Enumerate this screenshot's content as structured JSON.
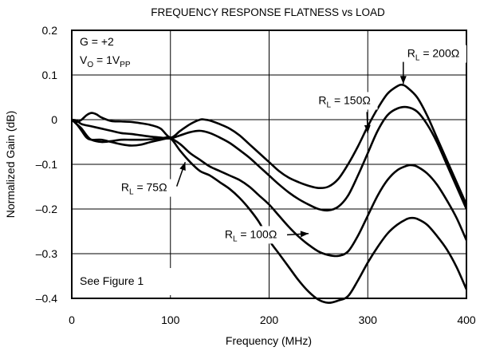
{
  "chart_data": {
    "type": "line",
    "title": "FREQUENCY RESPONSE FLATNESS vs LOAD",
    "xlabel": "Frequency (MHz)",
    "ylabel": "Normalized Gain (dB)",
    "xlim": [
      0,
      400
    ],
    "ylim": [
      -0.4,
      0.2
    ],
    "x_ticks": [
      0,
      100,
      200,
      300,
      400
    ],
    "x_tick_labels": [
      "0",
      "100",
      "200",
      "300",
      "400"
    ],
    "y_ticks": [
      0.2,
      0.1,
      0,
      -0.1,
      -0.2,
      -0.3,
      -0.4
    ],
    "y_tick_labels": [
      "0.2",
      "0.1",
      "0",
      "–0.1",
      "–0.2",
      "–0.3",
      "–0.4"
    ],
    "grid": true,
    "conditions": {
      "gain": {
        "main": "G = +2",
        "sub": ""
      },
      "vout": {
        "main": "V",
        "sub": "O",
        "rest": " = 1V",
        "sub2": "PP"
      },
      "note": "See Figure 1"
    },
    "series": [
      {
        "name": "RL = 200Ω",
        "label": {
          "r": "R",
          "sub": "L",
          "rest": " = 200Ω"
        },
        "x": [
          0,
          5,
          10,
          15,
          20,
          25,
          30,
          40,
          50,
          60,
          70,
          80,
          90,
          100,
          110,
          120,
          130,
          135,
          140,
          150,
          160,
          170,
          180,
          190,
          200,
          210,
          220,
          230,
          240,
          250,
          260,
          270,
          280,
          290,
          300,
          310,
          320,
          330,
          335,
          340,
          350,
          360,
          370,
          380,
          390,
          400
        ],
        "values": [
          0,
          -0.005,
          0.0,
          0.01,
          0.015,
          0.012,
          0.005,
          -0.003,
          -0.004,
          -0.005,
          -0.008,
          -0.012,
          -0.02,
          -0.04,
          -0.025,
          -0.01,
          0.0,
          0.0,
          -0.002,
          -0.01,
          -0.02,
          -0.035,
          -0.055,
          -0.075,
          -0.095,
          -0.115,
          -0.13,
          -0.14,
          -0.148,
          -0.153,
          -0.15,
          -0.133,
          -0.1,
          -0.06,
          -0.015,
          0.025,
          0.058,
          0.075,
          0.078,
          0.072,
          0.05,
          0.01,
          -0.04,
          -0.09,
          -0.14,
          -0.19
        ]
      },
      {
        "name": "RL = 150Ω",
        "label": {
          "r": "R",
          "sub": "L",
          "rest": " = 150Ω"
        },
        "x": [
          0,
          5,
          10,
          20,
          30,
          40,
          50,
          60,
          70,
          80,
          90,
          100,
          110,
          120,
          130,
          140,
          150,
          160,
          170,
          180,
          190,
          200,
          210,
          220,
          230,
          240,
          250,
          260,
          270,
          280,
          290,
          300,
          310,
          320,
          330,
          340,
          350,
          360,
          370,
          380,
          390,
          400
        ],
        "values": [
          0,
          -0.002,
          -0.01,
          -0.015,
          -0.02,
          -0.025,
          -0.03,
          -0.032,
          -0.035,
          -0.038,
          -0.04,
          -0.042,
          -0.035,
          -0.028,
          -0.025,
          -0.03,
          -0.04,
          -0.052,
          -0.068,
          -0.085,
          -0.105,
          -0.125,
          -0.145,
          -0.163,
          -0.178,
          -0.19,
          -0.2,
          -0.203,
          -0.195,
          -0.17,
          -0.125,
          -0.075,
          -0.025,
          0.01,
          0.025,
          0.028,
          0.018,
          -0.01,
          -0.05,
          -0.1,
          -0.15,
          -0.2
        ]
      },
      {
        "name": "RL = 100Ω",
        "label": {
          "r": "R",
          "sub": "L",
          "rest": " = 100Ω"
        },
        "x": [
          0,
          5,
          10,
          15,
          20,
          30,
          40,
          50,
          60,
          70,
          80,
          90,
          100,
          110,
          120,
          130,
          140,
          150,
          160,
          170,
          180,
          190,
          200,
          210,
          220,
          230,
          240,
          250,
          260,
          270,
          280,
          290,
          300,
          310,
          320,
          330,
          340,
          345,
          350,
          360,
          370,
          380,
          390,
          400
        ],
        "values": [
          0,
          -0.01,
          -0.025,
          -0.04,
          -0.045,
          -0.045,
          -0.05,
          -0.055,
          -0.058,
          -0.056,
          -0.05,
          -0.045,
          -0.042,
          -0.055,
          -0.075,
          -0.09,
          -0.105,
          -0.115,
          -0.125,
          -0.135,
          -0.15,
          -0.17,
          -0.19,
          -0.215,
          -0.24,
          -0.262,
          -0.28,
          -0.295,
          -0.303,
          -0.305,
          -0.295,
          -0.26,
          -0.215,
          -0.17,
          -0.135,
          -0.113,
          -0.103,
          -0.102,
          -0.105,
          -0.12,
          -0.145,
          -0.18,
          -0.22,
          -0.27
        ]
      },
      {
        "name": "RL = 75Ω",
        "label": {
          "r": "R",
          "sub": "L",
          "rest": " = 75Ω"
        },
        "x": [
          0,
          5,
          10,
          15,
          20,
          30,
          40,
          50,
          60,
          70,
          80,
          90,
          100,
          110,
          120,
          130,
          140,
          150,
          160,
          170,
          180,
          190,
          200,
          210,
          220,
          230,
          240,
          250,
          260,
          270,
          280,
          290,
          300,
          310,
          320,
          330,
          340,
          345,
          350,
          360,
          370,
          380,
          390,
          400
        ],
        "values": [
          0,
          -0.01,
          -0.02,
          -0.035,
          -0.045,
          -0.05,
          -0.048,
          -0.045,
          -0.045,
          -0.045,
          -0.044,
          -0.042,
          -0.042,
          -0.07,
          -0.095,
          -0.115,
          -0.125,
          -0.14,
          -0.155,
          -0.175,
          -0.2,
          -0.23,
          -0.27,
          -0.3,
          -0.33,
          -0.36,
          -0.385,
          -0.403,
          -0.41,
          -0.405,
          -0.395,
          -0.36,
          -0.32,
          -0.285,
          -0.255,
          -0.235,
          -0.222,
          -0.22,
          -0.222,
          -0.235,
          -0.26,
          -0.29,
          -0.33,
          -0.38
        ]
      }
    ],
    "annotations": [
      {
        "series": "RL = 200Ω",
        "text_pos_data": [
          340,
          0.14
        ],
        "arrow_to": [
          336,
          0.08
        ]
      },
      {
        "series": "RL = 150Ω",
        "text_pos_data": [
          250,
          0.035
        ],
        "arrow_to": [
          300,
          -0.03
        ]
      },
      {
        "series": "RL = 75Ω",
        "text_pos_data": [
          50,
          -0.16
        ],
        "arrow_to": [
          115,
          -0.095
        ]
      },
      {
        "series": "RL = 100Ω",
        "text_pos_data": [
          155,
          -0.265
        ],
        "arrow_to": [
          240,
          -0.255
        ]
      }
    ]
  }
}
